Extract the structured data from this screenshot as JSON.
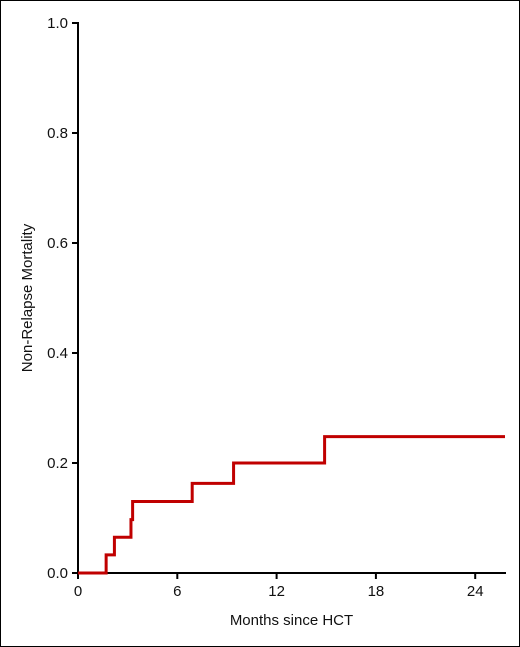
{
  "chart_data": {
    "type": "line",
    "title": "",
    "xlabel": "Months since HCT",
    "ylabel": "Non-Relapse Mortality",
    "xlim": [
      0,
      25.8
    ],
    "ylim": [
      0,
      1.0
    ],
    "x_ticks": [
      0,
      6,
      12,
      18,
      24
    ],
    "x_tick_labels": [
      "0",
      "6",
      "12",
      "18",
      "24"
    ],
    "y_ticks": [
      0.0,
      0.2,
      0.4,
      0.6,
      0.8,
      1.0
    ],
    "y_tick_labels": [
      "0.0",
      "0.2",
      "0.4",
      "0.6",
      "0.8",
      "1.0"
    ],
    "grid": false,
    "legend": "none",
    "series": [
      {
        "color": "#c00000",
        "step": "post",
        "x": [
          0,
          1.7,
          2.2,
          3.2,
          3.3,
          6.9,
          9.4,
          14.9,
          25.8
        ],
        "y": [
          0.0,
          0.033,
          0.065,
          0.097,
          0.13,
          0.163,
          0.2,
          0.248,
          0.248
        ]
      }
    ]
  }
}
